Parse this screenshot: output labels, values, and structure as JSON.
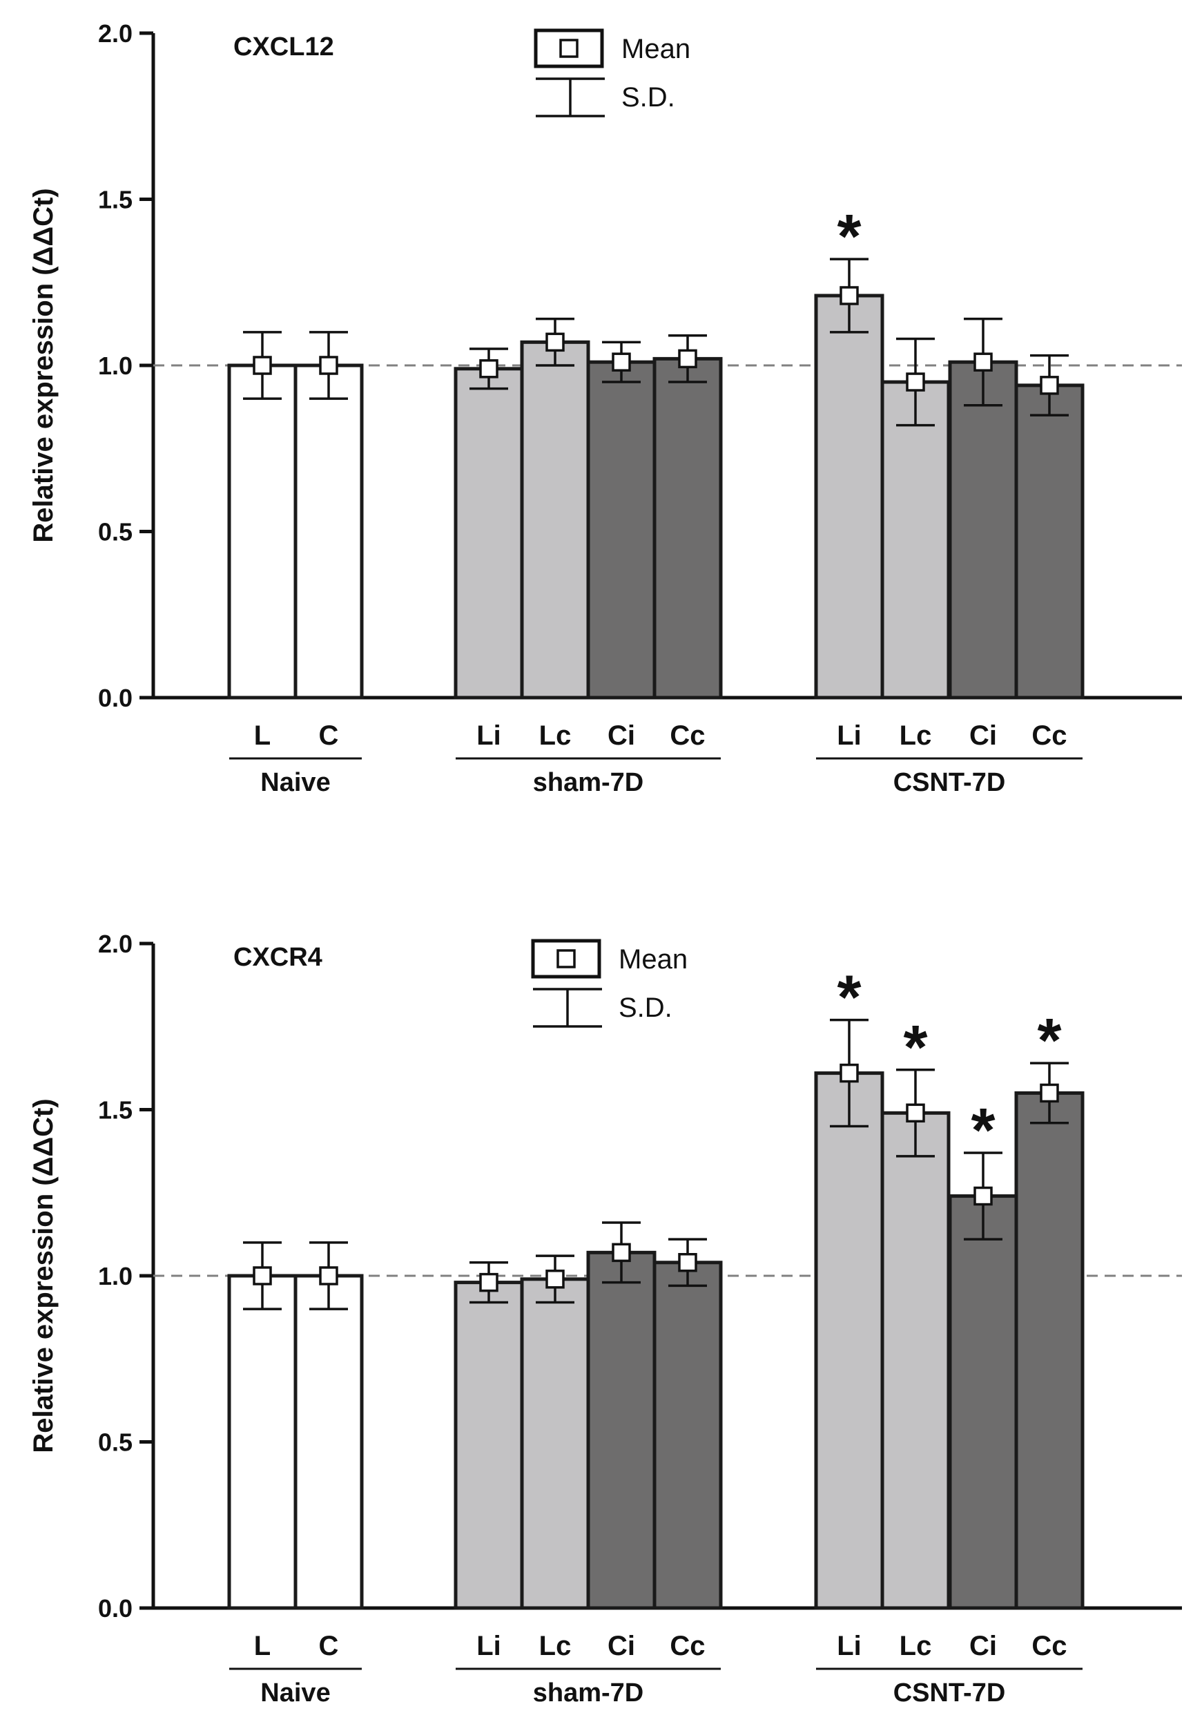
{
  "colors": {
    "naive": "#ffffff",
    "light": "#c3c2c4",
    "dark": "#6e6d6d",
    "stroke": "#1a1a1a",
    "reference": "#808080"
  },
  "legend": {
    "mean_label": "Mean",
    "sd_label": "S.D."
  },
  "groups": [
    {
      "label": "Naive",
      "categories": [
        "L",
        "C"
      ]
    },
    {
      "label": "sham-7D",
      "categories": [
        "Li",
        "Lc",
        "Ci",
        "Cc"
      ]
    },
    {
      "label": "CSNT-7D",
      "categories": [
        "Li",
        "Lc",
        "Ci",
        "Cc"
      ]
    }
  ],
  "chart_data": [
    {
      "type": "bar",
      "title": "CXCL12",
      "ylabel": "Relative expression (ΔΔCt)",
      "xlabel": "",
      "ylim": [
        0,
        2
      ],
      "yticks": [
        "0.0",
        "0.5",
        "1.0",
        "1.5",
        "2.0"
      ],
      "reference_line": 1.0,
      "categories": [
        "L",
        "C",
        "Li",
        "Lc",
        "Ci",
        "Cc",
        "Li",
        "Lc",
        "Ci",
        "Cc"
      ],
      "group_of_category": [
        "Naive",
        "Naive",
        "sham-7D",
        "sham-7D",
        "sham-7D",
        "sham-7D",
        "CSNT-7D",
        "CSNT-7D",
        "CSNT-7D",
        "CSNT-7D"
      ],
      "fill": [
        "naive",
        "naive",
        "light",
        "light",
        "dark",
        "dark",
        "light",
        "light",
        "dark",
        "dark"
      ],
      "values": [
        1.0,
        1.0,
        0.99,
        1.07,
        1.01,
        1.02,
        1.21,
        0.95,
        1.01,
        0.94
      ],
      "sd": [
        0.1,
        0.1,
        0.06,
        0.07,
        0.06,
        0.07,
        0.11,
        0.13,
        0.13,
        0.09
      ],
      "significant": [
        false,
        false,
        false,
        false,
        false,
        false,
        true,
        false,
        false,
        false
      ],
      "significance_marker": "*"
    },
    {
      "type": "bar",
      "title": "CXCR4",
      "ylabel": "Relative expression (ΔΔCt)",
      "xlabel": "",
      "ylim": [
        0,
        2
      ],
      "yticks": [
        "0.0",
        "0.5",
        "1.0",
        "1.5",
        "2.0"
      ],
      "reference_line": 1.0,
      "categories": [
        "L",
        "C",
        "Li",
        "Lc",
        "Ci",
        "Cc",
        "Li",
        "Lc",
        "Ci",
        "Cc"
      ],
      "group_of_category": [
        "Naive",
        "Naive",
        "sham-7D",
        "sham-7D",
        "sham-7D",
        "sham-7D",
        "CSNT-7D",
        "CSNT-7D",
        "CSNT-7D",
        "CSNT-7D"
      ],
      "fill": [
        "naive",
        "naive",
        "light",
        "light",
        "dark",
        "dark",
        "light",
        "light",
        "dark",
        "dark"
      ],
      "values": [
        1.0,
        1.0,
        0.98,
        0.99,
        1.07,
        1.04,
        1.61,
        1.49,
        1.24,
        1.55
      ],
      "sd": [
        0.1,
        0.1,
        0.06,
        0.07,
        0.09,
        0.07,
        0.16,
        0.13,
        0.13,
        0.09
      ],
      "significant": [
        false,
        false,
        false,
        false,
        false,
        false,
        true,
        true,
        true,
        true
      ],
      "significance_marker": "*"
    }
  ]
}
